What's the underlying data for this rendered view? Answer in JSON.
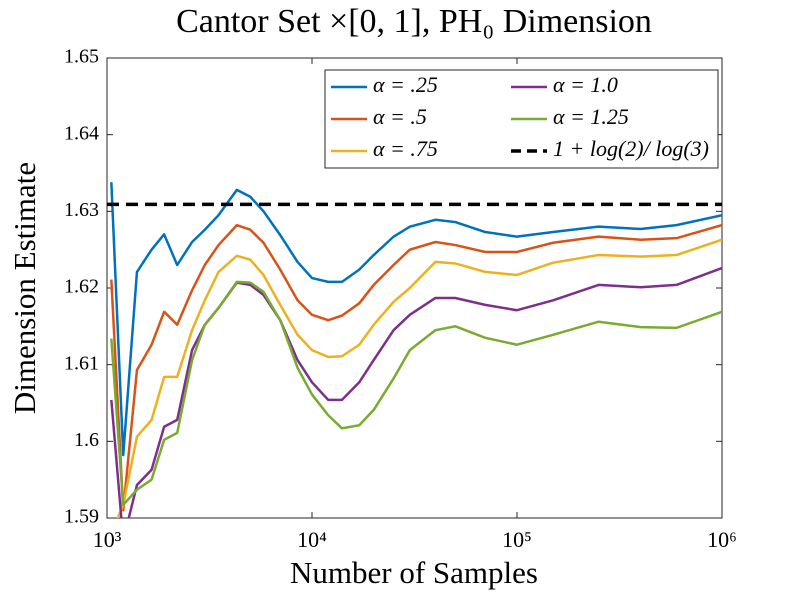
{
  "chart_data": {
    "type": "line",
    "title": "Cantor Set ×[0, 1], PH₀ Dimension",
    "xlabel": "Number of Samples",
    "ylabel": "Dimension Estimate",
    "xscale": "log",
    "xlim": [
      1000,
      1000000
    ],
    "xticks": [
      {
        "value": 1000,
        "label": "10³"
      },
      {
        "value": 10000,
        "label": "10⁴"
      },
      {
        "value": 100000,
        "label": "10⁵"
      },
      {
        "value": 1000000,
        "label": "10⁶"
      }
    ],
    "ylim": [
      1.59,
      1.65
    ],
    "yticks": [
      1.59,
      1.6,
      1.61,
      1.62,
      1.63,
      1.64,
      1.65
    ],
    "grid": false,
    "legend": "upper right",
    "x": [
      1050,
      1200,
      1400,
      1650,
      1900,
      2200,
      2600,
      3000,
      3500,
      4300,
      5000,
      5800,
      7000,
      8500,
      10000,
      12000,
      14000,
      17000,
      20000,
      25000,
      30000,
      40000,
      50000,
      70000,
      100000,
      150000,
      250000,
      400000,
      600000,
      1000000
    ],
    "series": [
      {
        "name": "α = .25",
        "color": "#0072bd",
        "values": [
          1.6338,
          1.5982,
          1.6221,
          1.625,
          1.627,
          1.623,
          1.626,
          1.6276,
          1.6295,
          1.6328,
          1.6319,
          1.63,
          1.6269,
          1.6234,
          1.6213,
          1.6208,
          1.6208,
          1.6224,
          1.6243,
          1.6267,
          1.628,
          1.6289,
          1.6286,
          1.6273,
          1.6267,
          1.6273,
          1.628,
          1.6277,
          1.6282,
          1.6295
        ]
      },
      {
        "name": "α = .5",
        "color": "#d95319",
        "values": [
          1.6211,
          1.591,
          1.6093,
          1.6126,
          1.6169,
          1.6152,
          1.6197,
          1.623,
          1.6256,
          1.6282,
          1.6276,
          1.6259,
          1.6224,
          1.6184,
          1.6165,
          1.6158,
          1.6164,
          1.618,
          1.6204,
          1.623,
          1.625,
          1.626,
          1.6256,
          1.6247,
          1.6247,
          1.6259,
          1.6267,
          1.6263,
          1.6265,
          1.6282
        ]
      },
      {
        "name": "α = .75",
        "color": "#edb120",
        "values": [
          1.588,
          1.5917,
          1.6006,
          1.6028,
          1.6084,
          1.6084,
          1.6145,
          1.6184,
          1.6221,
          1.6242,
          1.6237,
          1.6217,
          1.6178,
          1.6139,
          1.6119,
          1.611,
          1.6111,
          1.6126,
          1.6152,
          1.6182,
          1.62,
          1.6234,
          1.6232,
          1.6221,
          1.6217,
          1.6233,
          1.6243,
          1.6241,
          1.6243,
          1.6263
        ]
      },
      {
        "name": "α = 1.0",
        "color": "#7e2f8e",
        "values": [
          1.6054,
          1.5871,
          1.5943,
          1.5963,
          1.6019,
          1.6028,
          1.6119,
          1.6152,
          1.6174,
          1.6207,
          1.6204,
          1.6191,
          1.6158,
          1.6106,
          1.6077,
          1.6054,
          1.6054,
          1.6077,
          1.6106,
          1.6145,
          1.6165,
          1.6187,
          1.6187,
          1.6178,
          1.6171,
          1.6184,
          1.6204,
          1.6201,
          1.6204,
          1.6226
        ]
      },
      {
        "name": "α = 1.25",
        "color": "#77ac30",
        "values": [
          1.6134,
          1.5917,
          1.5937,
          1.595,
          1.6002,
          1.6011,
          1.6106,
          1.6152,
          1.6174,
          1.6208,
          1.6207,
          1.6195,
          1.6158,
          1.6096,
          1.6061,
          1.6034,
          1.6017,
          1.6021,
          1.6041,
          1.6082,
          1.6119,
          1.6145,
          1.615,
          1.6135,
          1.6126,
          1.6139,
          1.6156,
          1.6149,
          1.6148,
          1.6169
        ]
      }
    ],
    "hline": {
      "name": "1 + log(2)/ log(3)",
      "value": 1.6309,
      "color": "#000000",
      "style": "dashed"
    }
  }
}
